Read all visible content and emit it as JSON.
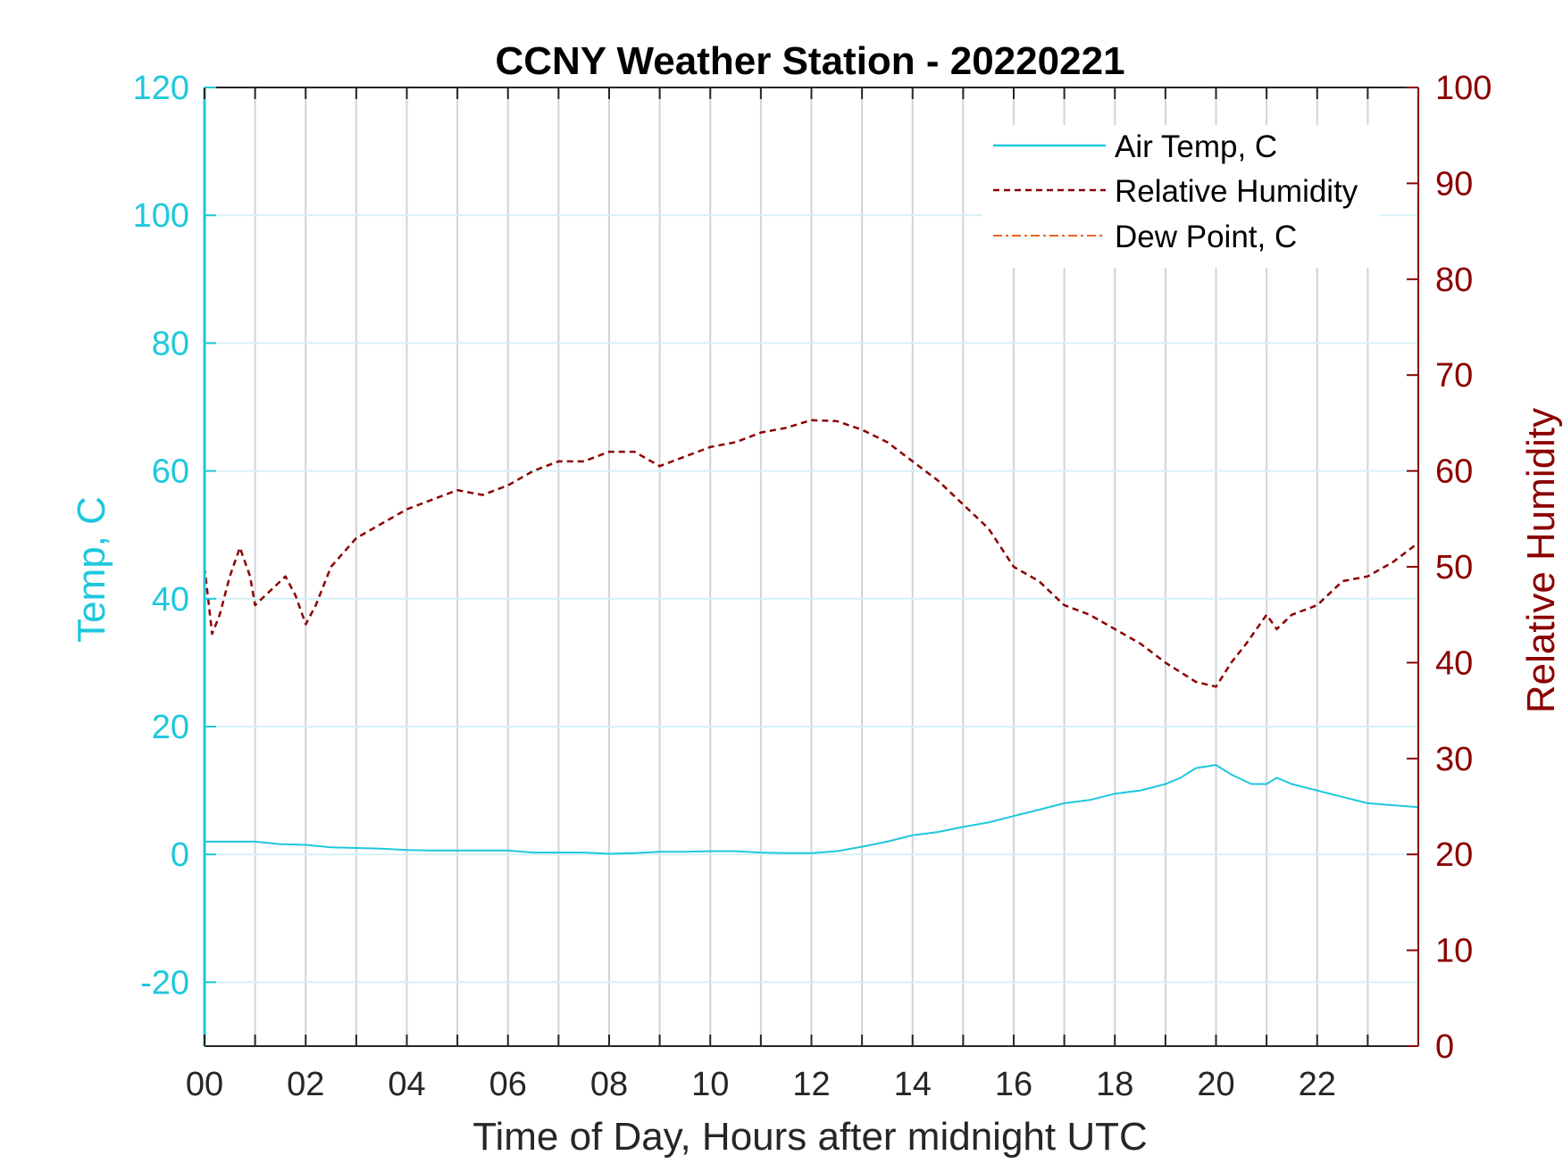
{
  "chart_data": {
    "type": "line",
    "title": "CCNY Weather Station - 20220221",
    "xlabel": "Time of Day, Hours after midnight UTC",
    "ylabel_left": "Temp, C",
    "ylabel_right": "Relative Humidity",
    "xlim": [
      0,
      24
    ],
    "ylim_left": [
      -30,
      120
    ],
    "ylim_right": [
      0,
      100
    ],
    "x_ticks": [
      0,
      2,
      4,
      6,
      8,
      10,
      12,
      14,
      16,
      18,
      20,
      22
    ],
    "x_tick_labels": [
      "00",
      "02",
      "04",
      "06",
      "08",
      "10",
      "12",
      "14",
      "16",
      "18",
      "20",
      "22"
    ],
    "y_left_ticks": [
      -20,
      0,
      20,
      40,
      60,
      80,
      100,
      120
    ],
    "y_right_ticks": [
      0,
      10,
      20,
      30,
      40,
      50,
      60,
      70,
      80,
      90,
      100
    ],
    "grid": "on",
    "legend_position": "top-right",
    "colors": {
      "temp": "#1ec8dc",
      "humidity": "#8b0000",
      "dewpoint": "#e8641e",
      "grid_vertical": "#d0d4d8",
      "grid_horizontal": "#d6f2f6",
      "axis_dark": "#262626"
    },
    "series": [
      {
        "name": "Air Temp, C",
        "axis": "left",
        "style": "solid",
        "x": [
          0,
          0.5,
          1,
          1.5,
          2,
          2.5,
          3,
          3.5,
          4,
          4.5,
          5,
          5.5,
          6,
          6.5,
          7,
          7.5,
          8,
          8.5,
          9,
          9.5,
          10,
          10.5,
          11,
          11.5,
          12,
          12.5,
          13,
          13.5,
          14,
          14.5,
          15,
          15.5,
          16,
          16.5,
          17,
          17.5,
          18,
          18.5,
          19,
          19.3,
          19.6,
          20,
          20.3,
          20.7,
          21,
          21.2,
          21.5,
          22,
          22.5,
          23,
          23.5,
          24
        ],
        "values": [
          2,
          2,
          2,
          1.6,
          1.5,
          1.1,
          1,
          0.9,
          0.7,
          0.6,
          0.6,
          0.6,
          0.6,
          0.3,
          0.3,
          0.3,
          0.1,
          0.2,
          0.4,
          0.4,
          0.5,
          0.5,
          0.3,
          0.2,
          0.2,
          0.5,
          1.2,
          2,
          3,
          3.5,
          4.3,
          5,
          6,
          7,
          8,
          8.5,
          9.5,
          10,
          11,
          12,
          13.5,
          14,
          12.5,
          11,
          11,
          12,
          11,
          10,
          9,
          8,
          7.7,
          7.4
        ]
      },
      {
        "name": "Relative Humidity",
        "axis": "right",
        "style": "dashed",
        "x": [
          0,
          0.15,
          0.3,
          0.5,
          0.7,
          0.9,
          1,
          1.2,
          1.4,
          1.6,
          1.8,
          2,
          2.2,
          2.5,
          3,
          3.5,
          4,
          4.5,
          5,
          5.5,
          6,
          6.5,
          7,
          7.5,
          8,
          8.5,
          9,
          9.5,
          10,
          10.5,
          11,
          11.5,
          12,
          12.5,
          13,
          13.5,
          14,
          14.5,
          15,
          15.5,
          16,
          16.5,
          17,
          17.5,
          18,
          18.5,
          19,
          19.3,
          19.6,
          20,
          20.3,
          20.6,
          21,
          21.2,
          21.5,
          22,
          22.5,
          23,
          23.5,
          24
        ],
        "values": [
          50,
          43,
          45,
          49,
          52,
          49,
          46,
          47,
          48,
          49,
          47,
          44,
          46,
          50,
          53,
          54.5,
          56,
          57,
          58,
          57.5,
          58.5,
          60,
          61,
          61,
          62,
          62,
          60.5,
          61.5,
          62.5,
          63,
          64,
          64.5,
          65.3,
          65.2,
          64.3,
          63,
          61,
          59,
          56.5,
          54,
          50,
          48.5,
          46,
          45,
          43.5,
          42,
          40,
          39,
          38,
          37.5,
          40,
          42,
          45,
          43.5,
          45,
          46,
          48.5,
          49,
          50.5,
          52.5
        ]
      },
      {
        "name": "Dew Point, C",
        "axis": "left",
        "style": "dashdot",
        "x": [],
        "values": []
      }
    ]
  }
}
